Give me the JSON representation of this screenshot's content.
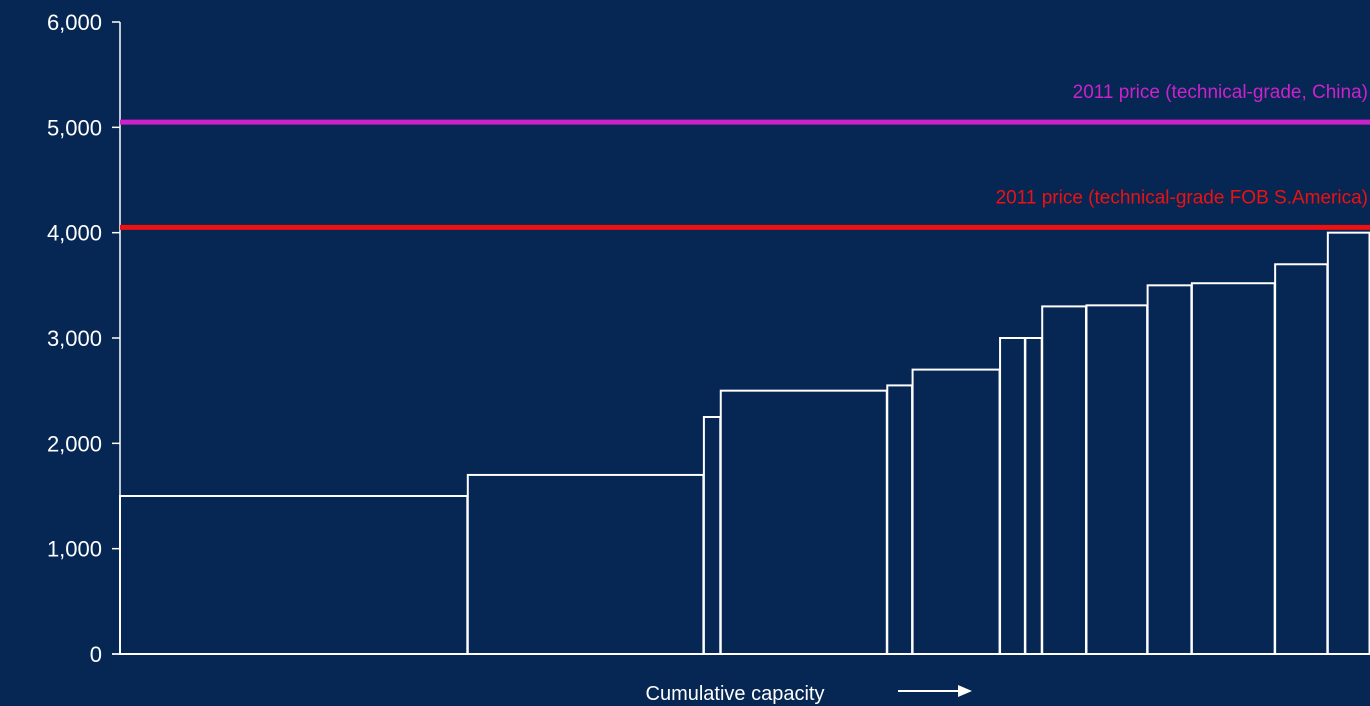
{
  "chart_data": {
    "type": "bar",
    "subtype": "cost-curve-variable-width",
    "xlabel": "Cumulative capacity",
    "xlabel_arrow": "right-arrow-icon",
    "ylim": [
      0,
      6000
    ],
    "yticks": [
      {
        "value": 0,
        "label": "0"
      },
      {
        "value": 1000,
        "label": "1,000"
      },
      {
        "value": 2000,
        "label": "2,000"
      },
      {
        "value": 3000,
        "label": "3,000"
      },
      {
        "value": 4000,
        "label": "4,000"
      },
      {
        "value": 5000,
        "label": "5,000"
      },
      {
        "value": 6000,
        "label": "6,000"
      }
    ],
    "bars": [
      {
        "width": 33.0,
        "value": 1500
      },
      {
        "width": 22.4,
        "value": 1700
      },
      {
        "width": 1.6,
        "value": 2250
      },
      {
        "width": 15.8,
        "value": 2500
      },
      {
        "width": 2.4,
        "value": 2550
      },
      {
        "width": 8.3,
        "value": 2700
      },
      {
        "width": 2.4,
        "value": 3000
      },
      {
        "width": 1.6,
        "value": 3000
      },
      {
        "width": 4.2,
        "value": 3300
      },
      {
        "width": 5.8,
        "value": 3310
      },
      {
        "width": 4.2,
        "value": 3500
      },
      {
        "width": 7.9,
        "value": 3520
      },
      {
        "width": 5.0,
        "value": 3700
      },
      {
        "width": 4.0,
        "value": 4000
      }
    ],
    "reference_lines": [
      {
        "value": 5050,
        "label": "2011 price (technical-grade, China)",
        "color": "#cc22cc"
      },
      {
        "value": 4050,
        "label": "2011 price (technical-grade FOB S.America)",
        "color": "#ee1111"
      }
    ],
    "colors": {
      "background": "#062653",
      "bars": "#ffffff",
      "axis": "#ffffff"
    }
  }
}
